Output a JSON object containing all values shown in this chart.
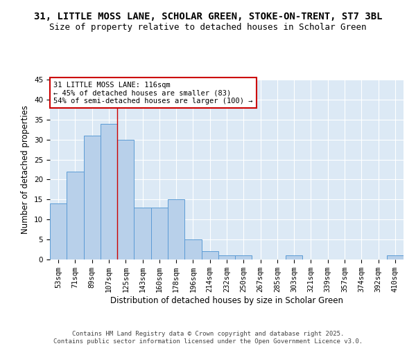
{
  "title1": "31, LITTLE MOSS LANE, SCHOLAR GREEN, STOKE-ON-TRENT, ST7 3BL",
  "title2": "Size of property relative to detached houses in Scholar Green",
  "xlabel": "Distribution of detached houses by size in Scholar Green",
  "ylabel": "Number of detached properties",
  "categories": [
    "53sqm",
    "71sqm",
    "89sqm",
    "107sqm",
    "125sqm",
    "143sqm",
    "160sqm",
    "178sqm",
    "196sqm",
    "214sqm",
    "232sqm",
    "250sqm",
    "267sqm",
    "285sqm",
    "303sqm",
    "321sqm",
    "339sqm",
    "357sqm",
    "374sqm",
    "392sqm",
    "410sqm"
  ],
  "values": [
    14,
    22,
    31,
    34,
    30,
    13,
    13,
    15,
    5,
    2,
    1,
    1,
    0,
    0,
    1,
    0,
    0,
    0,
    0,
    0,
    1
  ],
  "bar_color": "#b8d0ea",
  "bar_edge_color": "#5b9bd5",
  "bg_color": "#dce9f5",
  "grid_color": "#ffffff",
  "annotation_text": "31 LITTLE MOSS LANE: 116sqm\n← 45% of detached houses are smaller (83)\n54% of semi-detached houses are larger (100) →",
  "annotation_box_color": "#ffffff",
  "annotation_box_edge_color": "#cc0000",
  "vline_x": 3.5,
  "vline_color": "#cc0000",
  "ylim": [
    0,
    45
  ],
  "yticks": [
    0,
    5,
    10,
    15,
    20,
    25,
    30,
    35,
    40,
    45
  ],
  "footer": "Contains HM Land Registry data © Crown copyright and database right 2025.\nContains public sector information licensed under the Open Government Licence v3.0.",
  "title_fontsize": 10,
  "subtitle_fontsize": 9,
  "axis_label_fontsize": 8.5,
  "tick_fontsize": 7.5,
  "annotation_fontsize": 7.5,
  "footer_fontsize": 6.5
}
